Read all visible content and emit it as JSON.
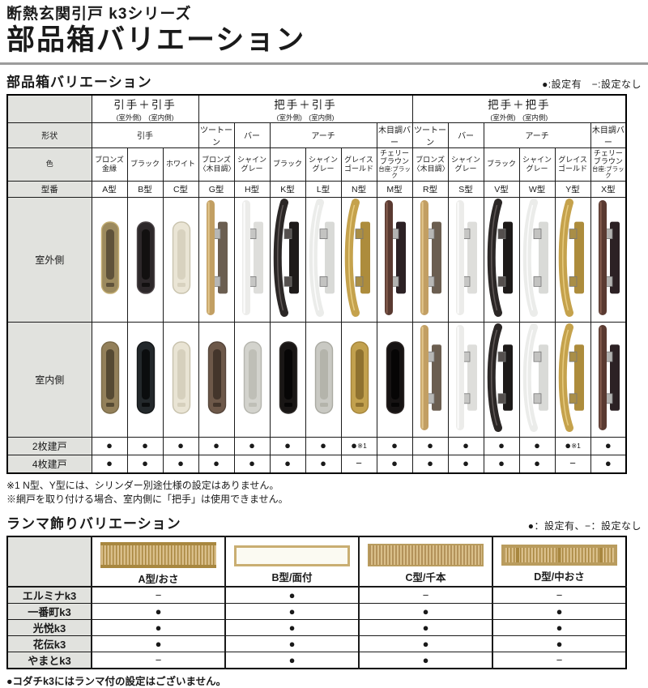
{
  "page": {
    "series_title": "断熱玄関引戸 k3シリーズ",
    "page_title": "部品箱バリエーション"
  },
  "section1": {
    "title": "部品箱バリエーション",
    "legend": "●:設定有　−:設定なし",
    "row_labels": {
      "shape": "形状",
      "color": "色",
      "model": "型番",
      "outdoor": "室外側",
      "indoor": "室内側",
      "two": "2枚建戸",
      "four": "4枚建戸"
    },
    "groups": [
      {
        "title": "引手＋引手",
        "subtitle": "(室外側)　(室内側)",
        "shapes": [
          {
            "label": "引手",
            "span": 3
          }
        ],
        "cols": [
          {
            "model": "A型",
            "color": "ブロンズ金縁",
            "two": "●",
            "four": "●",
            "out": {
              "kind": "pull",
              "body": "#9c8a5e",
              "edge": "#c3ad72",
              "inner": "#5f523a"
            },
            "in": {
              "kind": "pull",
              "body": "#93805a",
              "edge": "#7a6a48",
              "inner": "#564a33"
            }
          },
          {
            "model": "B型",
            "color": "ブラック",
            "two": "●",
            "four": "●",
            "out": {
              "kind": "pull",
              "body": "#2d282a",
              "edge": "#4d4649",
              "inner": "#121010"
            },
            "in": {
              "kind": "pull",
              "body": "#23282b",
              "edge": "#15181a",
              "inner": "#0b0d0e"
            }
          },
          {
            "model": "C型",
            "color": "ホワイト",
            "two": "●",
            "four": "●",
            "out": {
              "kind": "pull",
              "body": "#eae5d5",
              "edge": "#c9c3ae",
              "inner": "#d8d2bf"
            },
            "in": {
              "kind": "pull",
              "body": "#e9e4d4",
              "edge": "#c7c1ac",
              "inner": "#d6d0bd"
            }
          }
        ]
      },
      {
        "title": "把手＋引手",
        "subtitle": "(室外側)　(室内側)",
        "shapes": [
          {
            "label": "ツートーン",
            "span": 1
          },
          {
            "label": "バー",
            "span": 1
          },
          {
            "label": "アーチ",
            "span": 3
          },
          {
            "label": "木目調バー",
            "span": 1
          }
        ],
        "cols": [
          {
            "model": "G型",
            "color": "ブロンズ〈木目調〉",
            "two": "●",
            "four": "●",
            "out": {
              "kind": "bar",
              "bar": "#c29f63",
              "barhi": "#e6cb92",
              "plate": "#6b5e50",
              "bracket": "#b7b7b5"
            },
            "in": {
              "kind": "pull",
              "body": "#6d5849",
              "edge": "#55453a",
              "inner": "#43352b"
            }
          },
          {
            "model": "H型",
            "color": "シャイングレー",
            "two": "●",
            "four": "●",
            "out": {
              "kind": "bar",
              "bar": "#ececea",
              "barhi": "#ffffff",
              "plate": "#dededb",
              "bracket": "#c6c6c4"
            },
            "in": {
              "kind": "pull",
              "body": "#d3d3cd",
              "edge": "#b5b5ae",
              "inner": "#bfbfb7"
            }
          },
          {
            "model": "K型",
            "color": "ブラック",
            "two": "●",
            "four": "●",
            "out": {
              "kind": "arch",
              "bar": "#2b2726",
              "barhi": "#6b6361",
              "plate": "#1d1a19",
              "bracket": "#55504e"
            },
            "in": {
              "kind": "pull",
              "body": "#191615",
              "edge": "#2e2a28",
              "inner": "#070606"
            }
          },
          {
            "model": "L型",
            "color": "シャイングレー",
            "two": "●",
            "four": "●",
            "out": {
              "kind": "arch",
              "bar": "#ebecea",
              "barhi": "#ffffff",
              "plate": "#d9dad7",
              "bracket": "#c3c3c1"
            },
            "in": {
              "kind": "pull",
              "body": "#c9c9c3",
              "edge": "#aaaaa2",
              "inner": "#b4b4ab"
            }
          },
          {
            "model": "N型",
            "color": "グレイスゴールド",
            "two": "●※1",
            "four": "−",
            "out": {
              "kind": "arch",
              "bar": "#c5a24c",
              "barhi": "#ecd28a",
              "plate": "#ad8c3c",
              "bracket": "#a98e47"
            },
            "in": {
              "kind": "pull",
              "body": "#c2a14e",
              "edge": "#a5853b",
              "inner": "#8f7230"
            }
          },
          {
            "model": "M型",
            "color": "チェリーブラウン",
            "color_note": "台座:ブラック",
            "two": "●",
            "four": "●",
            "out": {
              "kind": "bar",
              "bar": "#5a3a31",
              "barhi": "#8a6152",
              "plate": "#2c2124",
              "bracket": "#b3b3b1"
            },
            "in": {
              "kind": "pull",
              "body": "#161313",
              "edge": "#2b2524",
              "inner": "#060505"
            }
          }
        ]
      },
      {
        "title": "把手＋把手",
        "subtitle": "(室外側)　(室内側)",
        "shapes": [
          {
            "label": "ツートーン",
            "span": 1
          },
          {
            "label": "バー",
            "span": 1
          },
          {
            "label": "アーチ",
            "span": 3
          },
          {
            "label": "木目調バー",
            "span": 1
          }
        ],
        "cols": [
          {
            "model": "R型",
            "color": "ブロンズ〈木目調〉",
            "two": "●",
            "four": "●",
            "out": {
              "kind": "bar",
              "bar": "#c29f63",
              "barhi": "#e6cb92",
              "plate": "#6b5e50",
              "bracket": "#b7b7b5"
            },
            "in": {
              "kind": "bar",
              "bar": "#c29f63",
              "barhi": "#e6cb92",
              "plate": "#6b5e50",
              "bracket": "#b7b7b5"
            }
          },
          {
            "model": "S型",
            "color": "シャイングレー",
            "two": "●",
            "four": "●",
            "out": {
              "kind": "bar",
              "bar": "#ececea",
              "barhi": "#ffffff",
              "plate": "#dededb",
              "bracket": "#c6c6c4"
            },
            "in": {
              "kind": "bar",
              "bar": "#ececea",
              "barhi": "#ffffff",
              "plate": "#dededb",
              "bracket": "#c6c6c4"
            }
          },
          {
            "model": "V型",
            "color": "ブラック",
            "two": "●",
            "four": "●",
            "out": {
              "kind": "arch",
              "bar": "#2b2726",
              "barhi": "#6b6361",
              "plate": "#1d1a19",
              "bracket": "#55504e"
            },
            "in": {
              "kind": "arch",
              "bar": "#2b2726",
              "barhi": "#6b6361",
              "plate": "#1d1a19",
              "bracket": "#55504e"
            }
          },
          {
            "model": "W型",
            "color": "シャイングレー",
            "two": "●",
            "four": "●",
            "out": {
              "kind": "arch",
              "bar": "#ebecea",
              "barhi": "#ffffff",
              "plate": "#d9dad7",
              "bracket": "#c3c3c1"
            },
            "in": {
              "kind": "arch",
              "bar": "#ebecea",
              "barhi": "#ffffff",
              "plate": "#d9dad7",
              "bracket": "#c3c3c1"
            }
          },
          {
            "model": "Y型",
            "color": "グレイスゴールド",
            "two": "●※1",
            "four": "−",
            "out": {
              "kind": "arch",
              "bar": "#c5a24c",
              "barhi": "#ecd28a",
              "plate": "#ad8c3c",
              "bracket": "#a98e47"
            },
            "in": {
              "kind": "arch",
              "bar": "#c5a24c",
              "barhi": "#ecd28a",
              "plate": "#ad8c3c",
              "bracket": "#a98e47"
            }
          },
          {
            "model": "X型",
            "color": "チェリーブラウン",
            "color_note": "台座:ブラック",
            "two": "●",
            "four": "●",
            "out": {
              "kind": "bar",
              "bar": "#5a3a31",
              "barhi": "#8a6152",
              "plate": "#2c2124",
              "bracket": "#b3b3b1"
            },
            "in": {
              "kind": "bar",
              "bar": "#5a3a31",
              "barhi": "#8a6152",
              "plate": "#2c2124",
              "bracket": "#b3b3b1"
            }
          }
        ]
      }
    ],
    "notes": [
      "※1 N型、Y型には、シリンダー別途仕様の設定はありません。",
      "※網戸を取り付ける場合、室内側に「把手」は使用できません。"
    ]
  },
  "section2": {
    "title": "ランマ飾りバリエーション",
    "legend": "●：設定有、−：設定なし",
    "columns": [
      {
        "label": "A型/おさ",
        "style": "osa"
      },
      {
        "label": "B型/面付",
        "style": "mentsuke"
      },
      {
        "label": "C型/千本",
        "style": "senbon"
      },
      {
        "label": "D型/中おさ",
        "style": "nakaosa"
      }
    ],
    "rows": [
      {
        "label": "エルミナk3",
        "values": [
          "−",
          "●",
          "−",
          "−"
        ]
      },
      {
        "label": "一番町k3",
        "values": [
          "●",
          "●",
          "●",
          "●"
        ]
      },
      {
        "label": "光悦k3",
        "values": [
          "●",
          "●",
          "●",
          "●"
        ]
      },
      {
        "label": "花伝k3",
        "values": [
          "●",
          "●",
          "●",
          "●"
        ]
      },
      {
        "label": "やまとk3",
        "values": [
          "−",
          "●",
          "●",
          "−"
        ]
      }
    ],
    "note": "●コダチk3にはランマ付の設定はございません。",
    "colors": {
      "wood_light": "#d9bf8a",
      "wood_mid": "#c3a368",
      "wood_dark": "#a8873f",
      "panel": "#fbfaf2",
      "frame": "#b99c5e"
    }
  }
}
